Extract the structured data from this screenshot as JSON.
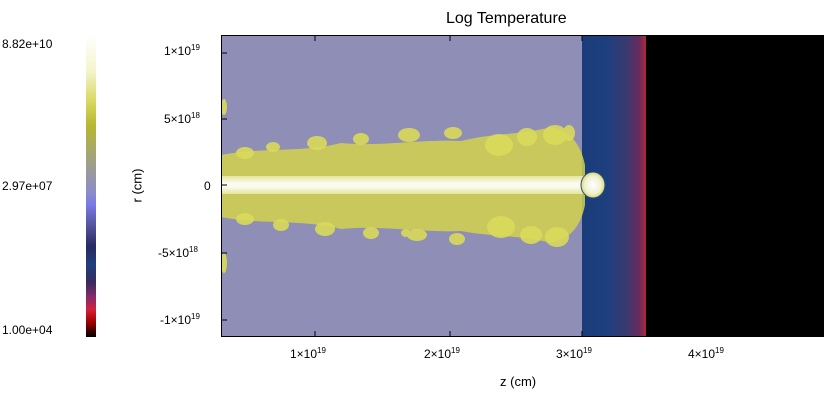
{
  "plot": {
    "title": "Log Temperature",
    "xlabel": "z (cm)",
    "ylabel": "r (cm)",
    "xticks": [
      {
        "base": "1×10",
        "exp": "19"
      },
      {
        "base": "2×10",
        "exp": "19"
      },
      {
        "base": "3×10",
        "exp": "19"
      },
      {
        "base": "4×10",
        "exp": "19"
      }
    ],
    "yticks": [
      {
        "base": "1×10",
        "exp": "19"
      },
      {
        "base": "5×10",
        "exp": "18"
      },
      {
        "text": "0"
      },
      {
        "base": "-5×10",
        "exp": "18"
      },
      {
        "base": "-1×10",
        "exp": "19"
      }
    ]
  },
  "colorbar": {
    "labels": [
      "8.82e+10",
      "2.97e+07",
      "1.00e+04"
    ]
  },
  "colors": {
    "ambient": "#8e8eb6",
    "shell": "#1e3f7e",
    "outside": "#000000",
    "jet": "#f6f6de",
    "cocoon": "#d8d860"
  }
}
